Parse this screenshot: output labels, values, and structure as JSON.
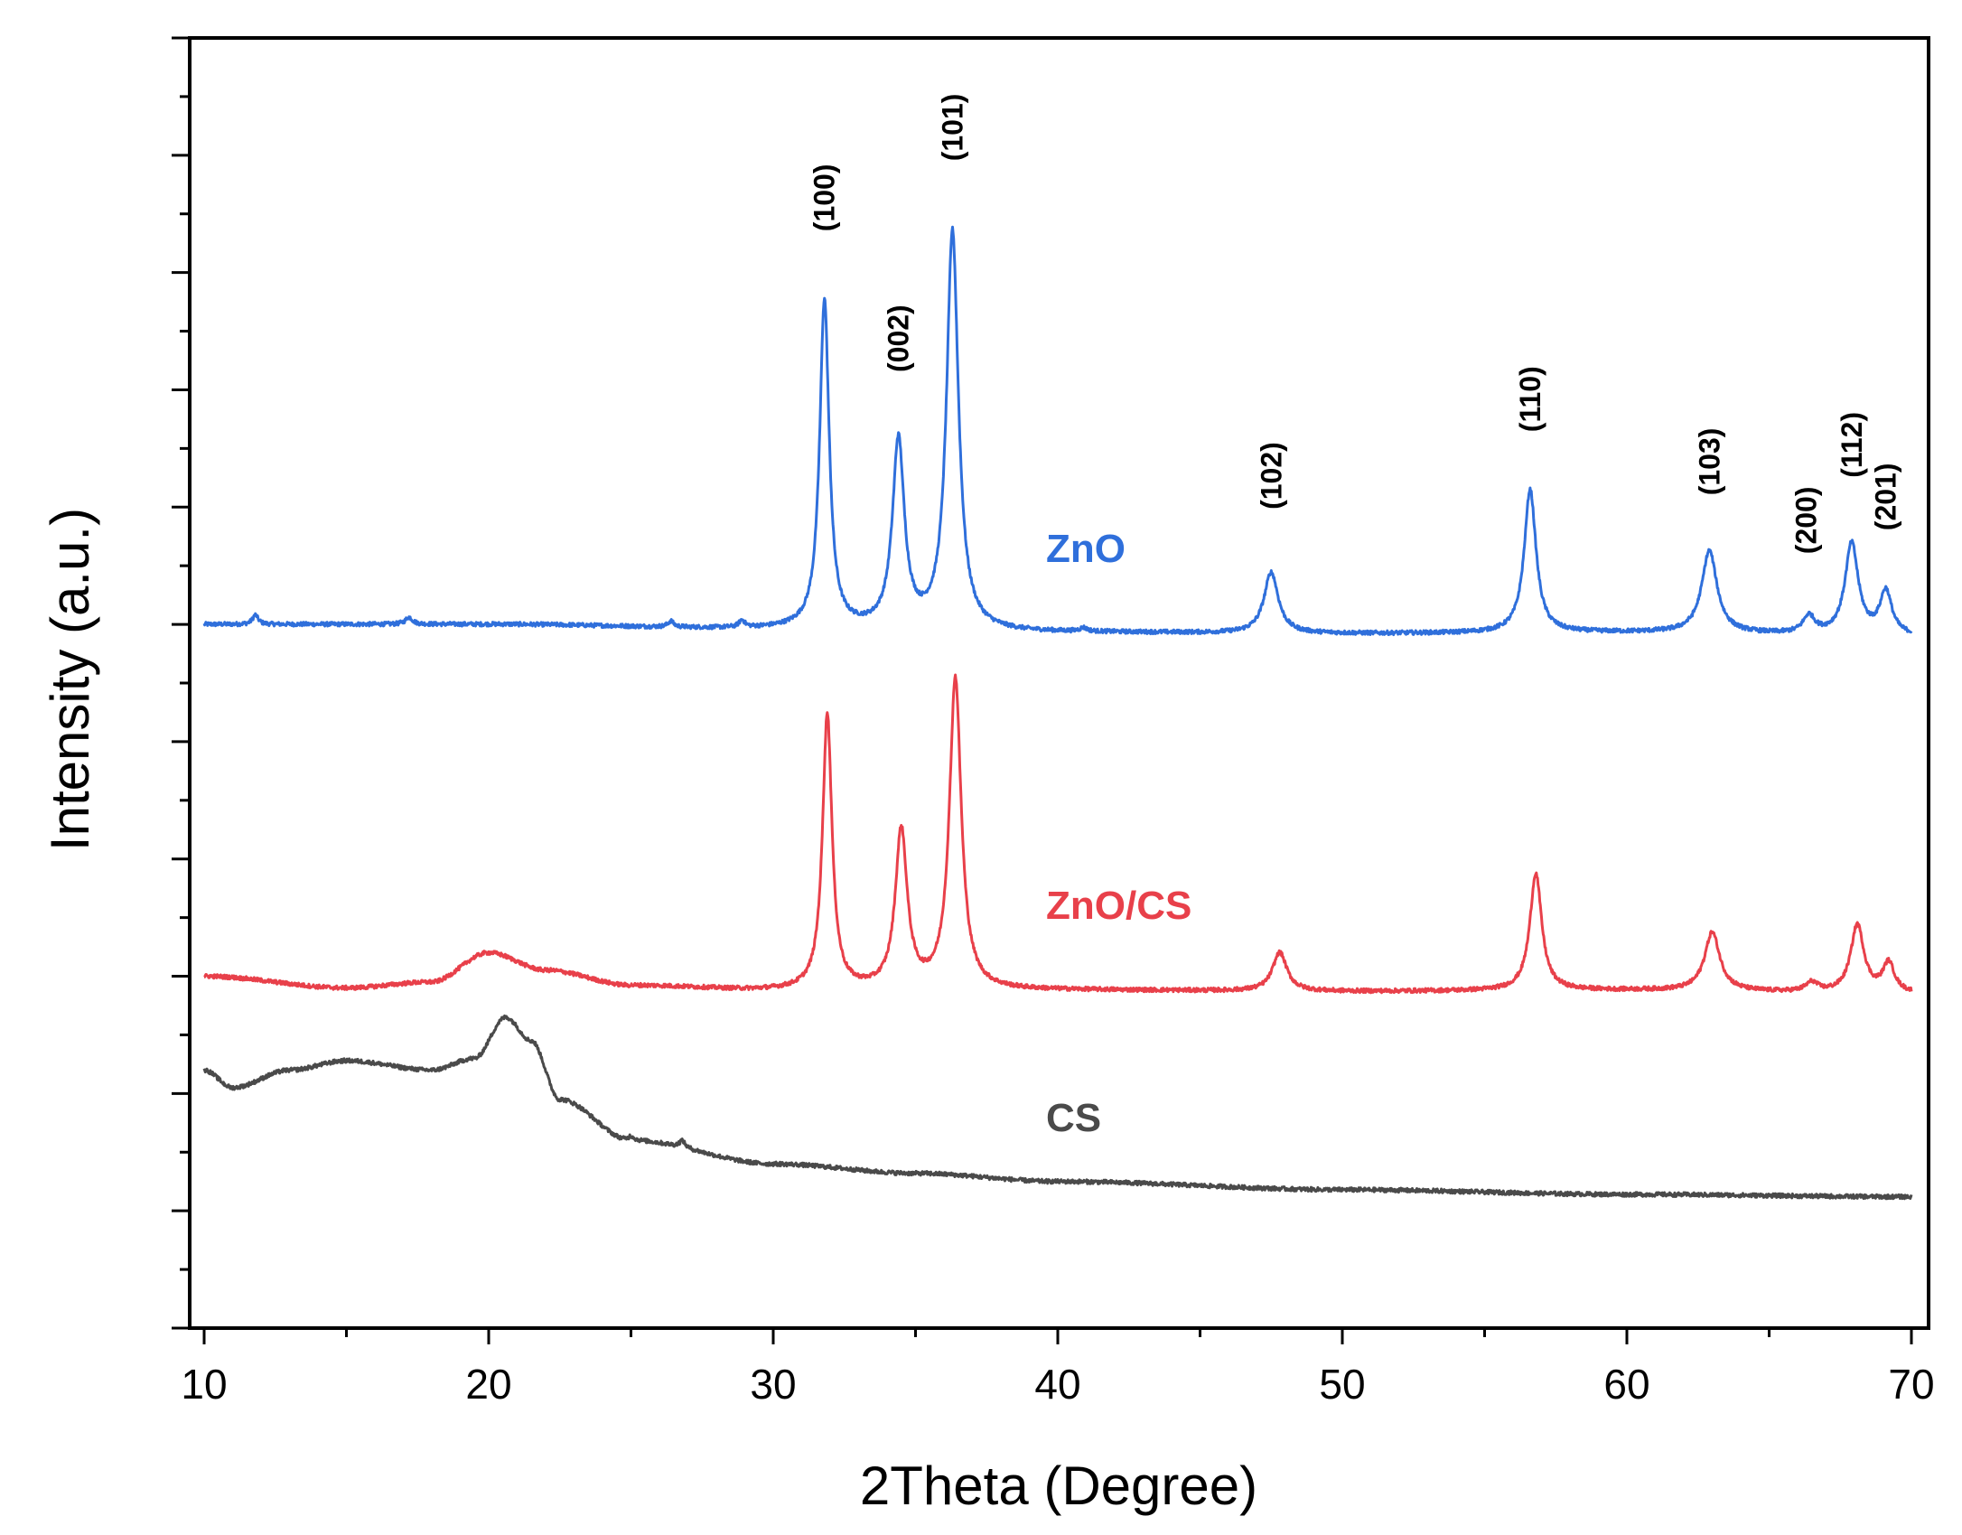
{
  "chart_data": {
    "type": "line",
    "xlabel": "2Theta (Degree)",
    "ylabel": "Intensity (a.u.)",
    "xlim": [
      10,
      70
    ],
    "xticks": [
      10,
      20,
      30,
      40,
      50,
      60,
      70
    ],
    "ylim": [
      0,
      11
    ],
    "yticks_unlabeled": true,
    "grid": false,
    "legend": "inline labels next to each trace",
    "series": [
      {
        "name": "ZnO",
        "color": "#2f6fdb",
        "baseline": [
          [
            10,
            6.0
          ],
          [
            20,
            6.0
          ],
          [
            30,
            5.96
          ],
          [
            40,
            5.93
          ],
          [
            50,
            5.92
          ],
          [
            60,
            5.93
          ],
          [
            70,
            5.9
          ]
        ],
        "peaks": [
          {
            "x": 11.8,
            "h": 0.08,
            "w": 0.12
          },
          {
            "x": 17.2,
            "h": 0.06,
            "w": 0.15
          },
          {
            "x": 26.4,
            "h": 0.05,
            "w": 0.12
          },
          {
            "x": 28.9,
            "h": 0.06,
            "w": 0.12
          },
          {
            "x": 31.8,
            "h": 2.8,
            "w": 0.2
          },
          {
            "x": 34.4,
            "h": 1.6,
            "w": 0.25
          },
          {
            "x": 36.3,
            "h": 3.4,
            "w": 0.25
          },
          {
            "x": 40.9,
            "h": 0.03,
            "w": 0.15
          },
          {
            "x": 47.5,
            "h": 0.52,
            "w": 0.3
          },
          {
            "x": 56.6,
            "h": 1.22,
            "w": 0.25
          },
          {
            "x": 62.9,
            "h": 0.7,
            "w": 0.32
          },
          {
            "x": 66.4,
            "h": 0.15,
            "w": 0.25
          },
          {
            "x": 67.9,
            "h": 0.78,
            "w": 0.28
          },
          {
            "x": 69.1,
            "h": 0.37,
            "w": 0.25
          }
        ]
      },
      {
        "name": "ZnO/CS",
        "color": "#e8404a",
        "baseline": [
          [
            10,
            3.0
          ],
          [
            15,
            2.9
          ],
          [
            18,
            2.95
          ],
          [
            20,
            3.2
          ],
          [
            22,
            3.05
          ],
          [
            25,
            2.92
          ],
          [
            30,
            2.88
          ],
          [
            40,
            2.88
          ],
          [
            50,
            2.87
          ],
          [
            60,
            2.88
          ],
          [
            70,
            2.85
          ]
        ],
        "peaks": [
          {
            "x": 31.9,
            "h": 2.35,
            "w": 0.2
          },
          {
            "x": 34.5,
            "h": 1.35,
            "w": 0.25
          },
          {
            "x": 36.4,
            "h": 2.65,
            "w": 0.25
          },
          {
            "x": 47.8,
            "h": 0.33,
            "w": 0.3
          },
          {
            "x": 56.8,
            "h": 1.0,
            "w": 0.25
          },
          {
            "x": 63.0,
            "h": 0.5,
            "w": 0.32
          },
          {
            "x": 66.5,
            "h": 0.08,
            "w": 0.25
          },
          {
            "x": 68.1,
            "h": 0.58,
            "w": 0.28
          },
          {
            "x": 69.2,
            "h": 0.25,
            "w": 0.25
          }
        ]
      },
      {
        "name": "CS",
        "color": "#4a4a4a",
        "baseline": [
          [
            10,
            2.2
          ],
          [
            11,
            2.05
          ],
          [
            13,
            2.2
          ],
          [
            15,
            2.28
          ],
          [
            18,
            2.2
          ],
          [
            19.5,
            2.3
          ],
          [
            20.6,
            2.65
          ],
          [
            21.5,
            2.45
          ],
          [
            22.5,
            1.95
          ],
          [
            25,
            1.6
          ],
          [
            30,
            1.4
          ],
          [
            35,
            1.32
          ],
          [
            40,
            1.25
          ],
          [
            50,
            1.18
          ],
          [
            60,
            1.14
          ],
          [
            70,
            1.12
          ]
        ],
        "peaks": [
          {
            "x": 25.0,
            "h": 0.04,
            "w": 0.12
          },
          {
            "x": 26.8,
            "h": 0.06,
            "w": 0.12
          }
        ]
      }
    ],
    "annotations": [
      {
        "text": "(100)",
        "x": 31.8,
        "y": 9.35
      },
      {
        "text": "(002)",
        "x": 34.4,
        "y": 8.15
      },
      {
        "text": "(101)",
        "x": 36.3,
        "y": 9.95
      },
      {
        "text": "(102)",
        "x": 47.5,
        "y": 6.98
      },
      {
        "text": "(110)",
        "x": 56.6,
        "y": 7.64
      },
      {
        "text": "(103)",
        "x": 62.9,
        "y": 7.1
      },
      {
        "text": "(200)",
        "x": 66.3,
        "y": 6.6
      },
      {
        "text": "(112)",
        "x": 67.9,
        "y": 7.25
      },
      {
        "text": "(201)",
        "x": 69.1,
        "y": 6.8
      }
    ]
  },
  "labels": {
    "zno": "ZnO",
    "zno_cs": "ZnO/CS",
    "cs": "CS"
  },
  "colors": {
    "axis": "#000000",
    "zno": "#2f6fdb",
    "zno_cs": "#e8404a",
    "cs": "#4a4a4a"
  }
}
